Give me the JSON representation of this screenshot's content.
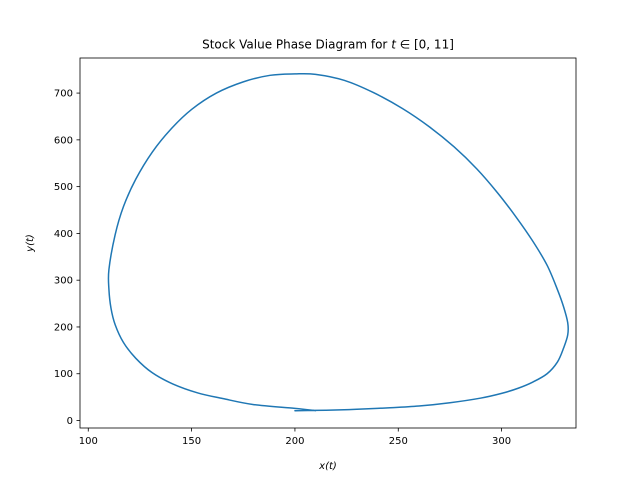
{
  "chart_data": {
    "type": "line",
    "title": "Stock Value Phase Diagram for t ∈ [0, 11]",
    "title_prefix": "Stock Value Phase Diagram for ",
    "title_var": "t",
    "title_suffix": " ∈ [0, 11]",
    "xlabel": "x(t)",
    "ylabel": "y(t)",
    "xlim": [
      96,
      336
    ],
    "ylim": [
      -16,
      775
    ],
    "xticks": [
      100,
      150,
      200,
      250,
      300
    ],
    "yticks": [
      0,
      100,
      200,
      300,
      400,
      500,
      600,
      700
    ],
    "grid": false,
    "line_color": "#1f77b4",
    "series": [
      {
        "x": [
          200,
          215,
          230,
          245,
          260,
          275,
          290,
          300,
          308,
          315,
          322,
          327,
          330,
          332,
          332,
          330,
          327,
          322,
          315,
          307,
          298,
          288,
          277,
          265,
          252,
          238,
          224,
          210,
          200,
          188,
          175,
          162,
          150,
          140,
          131,
          123,
          117,
          113,
          110,
          110,
          111,
          113,
          117,
          123,
          131,
          141,
          153,
          165,
          180,
          200,
          210
        ],
        "y": [
          21,
          22,
          24,
          27,
          31,
          38,
          48,
          58,
          69,
          82,
          100,
          125,
          155,
          183,
          209,
          243,
          280,
          332,
          384,
          435,
          487,
          538,
          585,
          628,
          667,
          701,
          727,
          740,
          741,
          738,
          724,
          700,
          665,
          623,
          574,
          516,
          457,
          397,
          323,
          280,
          240,
          205,
          167,
          133,
          102,
          78,
          59,
          47,
          34,
          26,
          21
        ]
      }
    ]
  }
}
